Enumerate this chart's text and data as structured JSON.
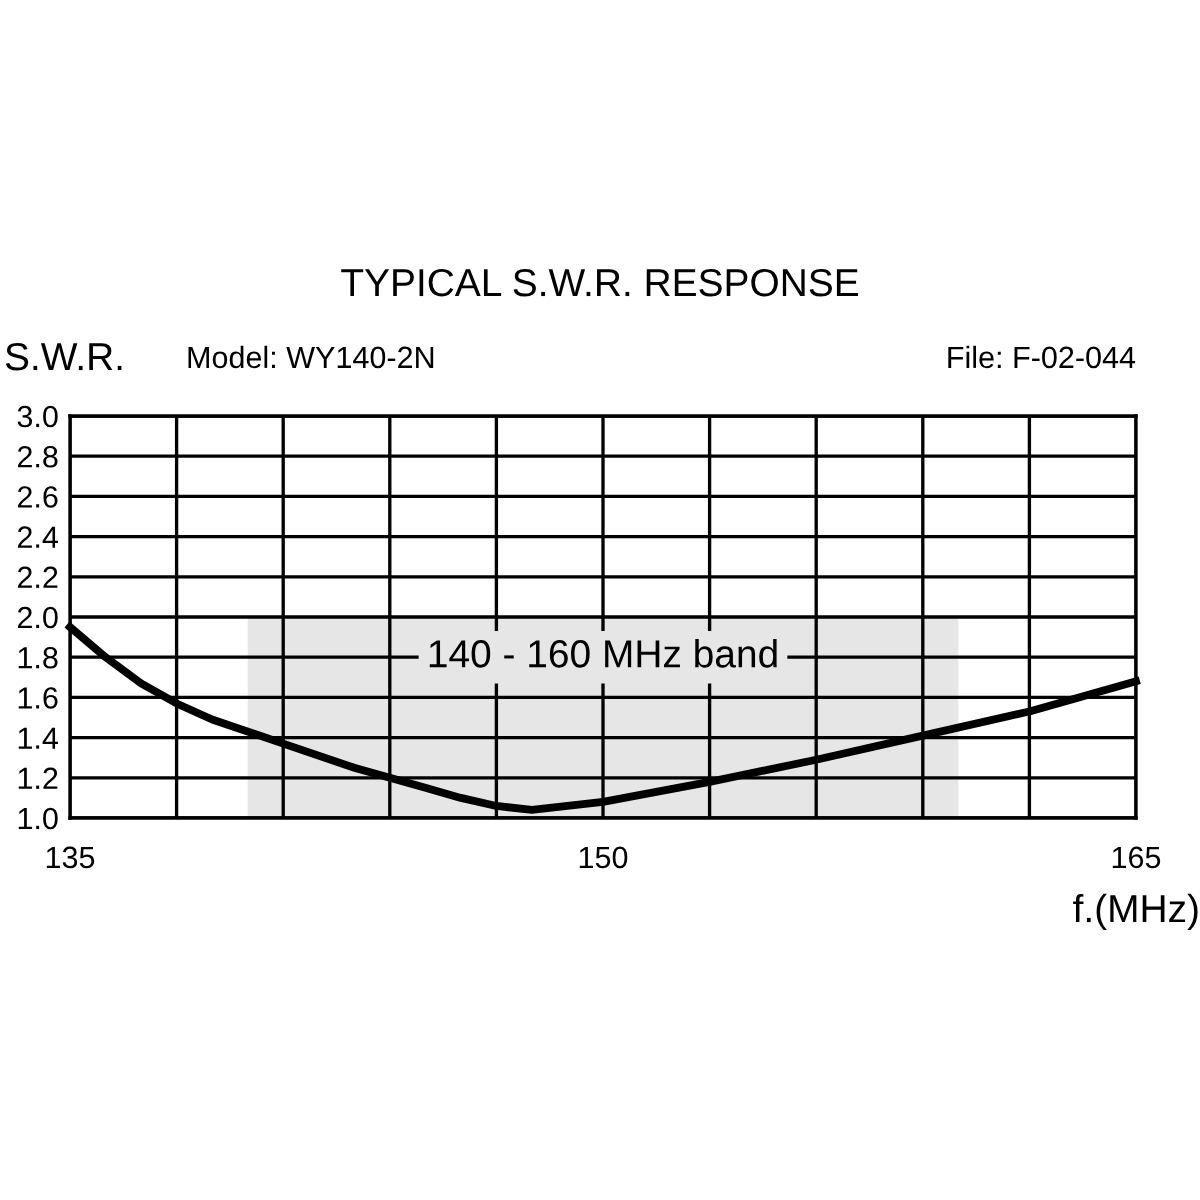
{
  "chart_data": {
    "type": "line",
    "title": "TYPICAL S.W.R. RESPONSE",
    "ylabel": "S.W.R.",
    "xlabel": "f.(MHz)",
    "annotations": [
      "Model: WY140-2N",
      "File: F-02-044"
    ],
    "x": [
      135,
      136,
      137,
      138,
      139,
      141,
      143,
      144,
      145,
      146,
      147,
      148,
      150,
      153,
      156,
      159,
      162,
      165
    ],
    "series": [
      {
        "color": "#000000",
        "values": [
          1.95,
          1.8,
          1.67,
          1.57,
          1.49,
          1.37,
          1.25,
          1.2,
          1.15,
          1.1,
          1.06,
          1.04,
          1.08,
          1.18,
          1.29,
          1.41,
          1.53,
          1.68
        ]
      }
    ],
    "bands": [
      {
        "axis": "x",
        "from": 140,
        "to": 160,
        "label": "140 - 160 MHz band",
        "color": "#e6e6e6"
      }
    ],
    "xlim": [
      135,
      165
    ],
    "ylim": [
      1.0,
      3.0
    ],
    "xticks": [
      135,
      {
        "value": 138,
        "label": null
      },
      {
        "value": 141,
        "label": null
      },
      {
        "value": 144,
        "label": null
      },
      {
        "value": 147,
        "label": null
      },
      150,
      {
        "value": 153,
        "label": null
      },
      {
        "value": 156,
        "label": null
      },
      {
        "value": 159,
        "label": null
      },
      {
        "value": 162,
        "label": null
      },
      165
    ],
    "yticks": [
      {
        "value": 1.0,
        "label": "1.0"
      },
      1.2,
      1.4,
      1.6,
      1.8,
      {
        "value": 2.0,
        "label": "2.0"
      },
      2.2,
      2.4,
      2.6,
      2.8,
      {
        "value": 3.0,
        "label": "3.0"
      }
    ],
    "grid": true,
    "marker": "none",
    "line_style": "solid"
  }
}
